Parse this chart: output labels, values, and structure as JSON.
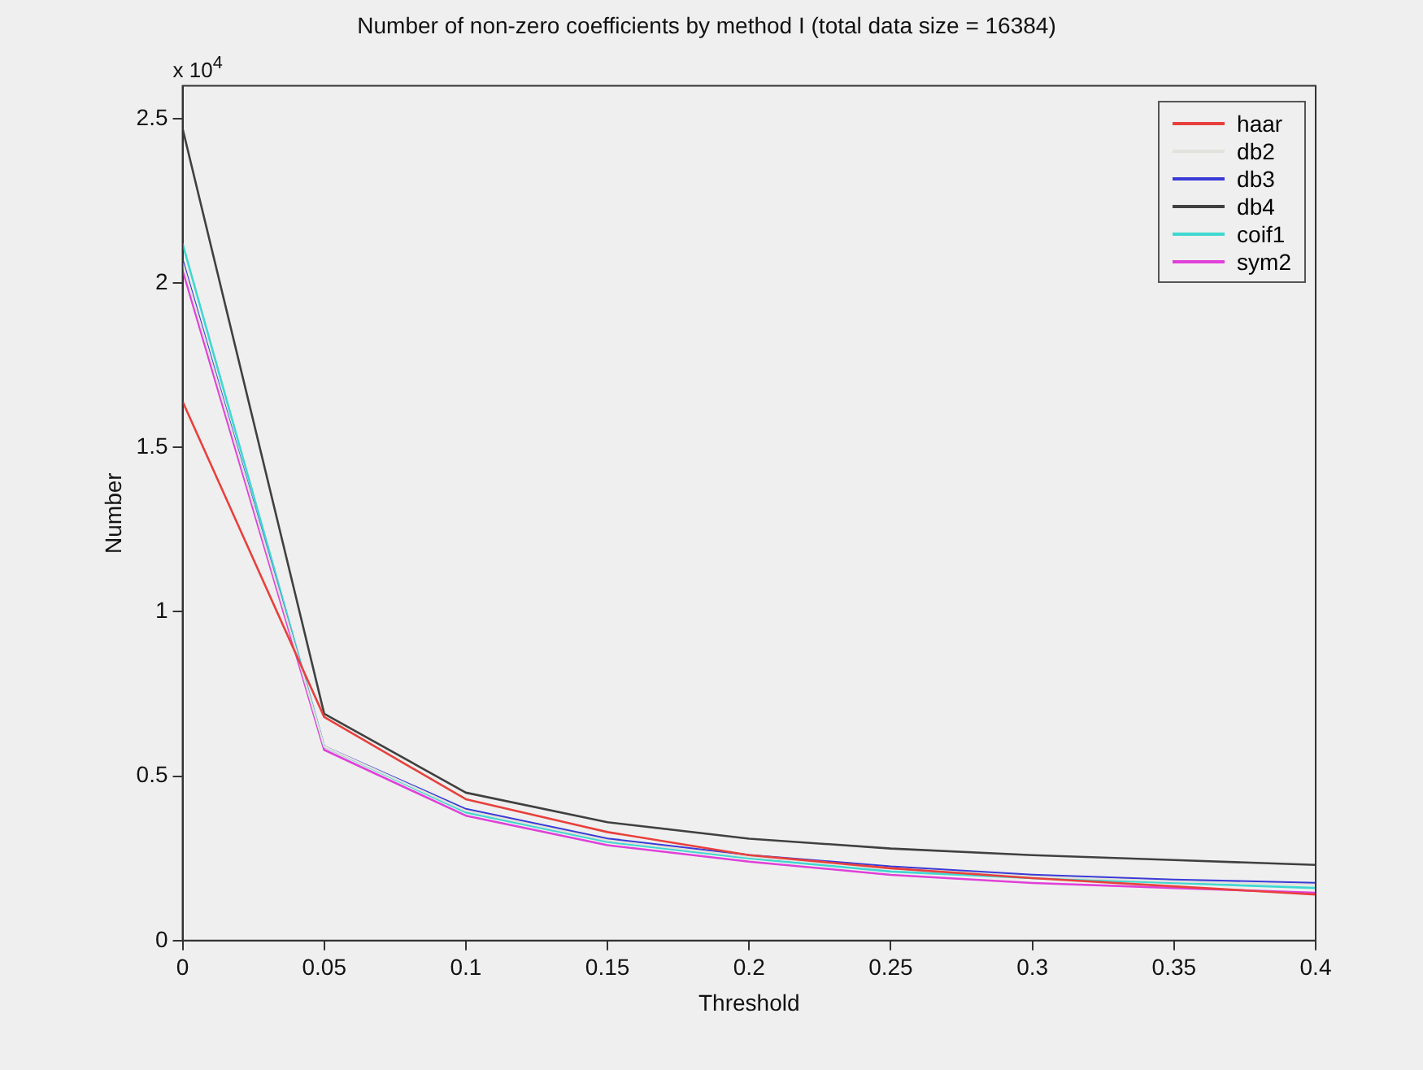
{
  "chart_data": {
    "type": "line",
    "title": "Number of non-zero coefficients by method I (total data size = 16384)",
    "xlabel": "Threshold",
    "ylabel": "Number",
    "annotations": [
      "x 10$^{4}$"
    ],
    "x": [
      0,
      0.05,
      0.1,
      0.15,
      0.2,
      0.25,
      0.3,
      0.35,
      0.4
    ],
    "series": [
      {
        "name": "haar",
        "color": "#e8403c",
        "values": [
          1.64,
          0.68,
          0.43,
          0.33,
          0.26,
          0.22,
          0.19,
          0.165,
          0.14
        ]
      },
      {
        "name": "db2",
        "color": "#e2e2dc",
        "values": [
          2.06,
          0.59,
          0.395,
          0.305,
          0.255,
          0.22,
          0.195,
          0.18,
          0.17
        ]
      },
      {
        "name": "db3",
        "color": "#3a3ad8",
        "values": [
          2.07,
          0.59,
          0.4,
          0.31,
          0.26,
          0.225,
          0.2,
          0.185,
          0.175
        ]
      },
      {
        "name": "db4",
        "color": "#404040",
        "values": [
          2.47,
          0.69,
          0.45,
          0.36,
          0.31,
          0.28,
          0.26,
          0.245,
          0.23
        ]
      },
      {
        "name": "coif1",
        "color": "#3fd8d0",
        "values": [
          2.12,
          0.59,
          0.39,
          0.3,
          0.25,
          0.21,
          0.19,
          0.175,
          0.16
        ]
      },
      {
        "name": "sym2",
        "color": "#e040d8",
        "values": [
          2.04,
          0.58,
          0.38,
          0.29,
          0.24,
          0.2,
          0.175,
          0.16,
          0.145
        ]
      }
    ],
    "xlim": [
      0,
      0.4
    ],
    "xticks": [
      0,
      0.05,
      0.1,
      0.15,
      0.2,
      0.25,
      0.3,
      0.35,
      0.4
    ],
    "ylim": [
      0,
      2.6
    ],
    "yticks": [
      0,
      0.5,
      1,
      1.5,
      2,
      2.5
    ],
    "grid": false,
    "legend": "top right",
    "marker": "none",
    "line_style": "solid"
  }
}
